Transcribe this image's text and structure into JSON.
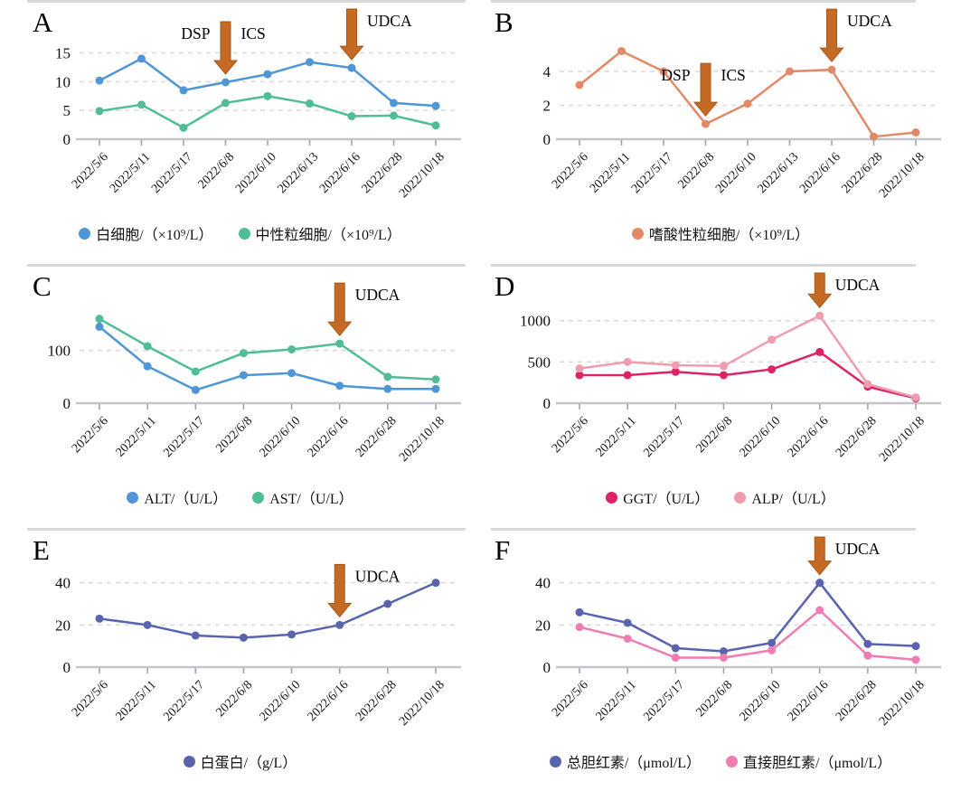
{
  "figure_background": "#ffffff",
  "annotation_arrow_color": "#C56A24",
  "annotation_arrow_edge_color": "#A85616",
  "grid_color": "#d9d9d9",
  "axis_color": "#c2c6ca",
  "chart_data": [
    {
      "panel": "A",
      "type": "line",
      "categories": [
        "2022/5/6",
        "2022/5/11",
        "2022/5/17",
        "2022/6/8",
        "2022/6/10",
        "2022/6/13",
        "2022/6/16",
        "2022/6/28",
        "2022/10/18"
      ],
      "series": [
        {
          "name": "白细胞/（×10⁹/L）",
          "color": "#4E96D5",
          "values": [
            10.2,
            14.0,
            8.5,
            9.9,
            11.3,
            13.4,
            12.4,
            6.3,
            5.8
          ]
        },
        {
          "name": "中性粒细胞/（×10⁹/L）",
          "color": "#50BD96",
          "values": [
            4.9,
            6.0,
            2.0,
            6.3,
            7.5,
            6.2,
            4.0,
            4.1,
            2.4
          ]
        }
      ],
      "y_ticks": [
        0,
        5,
        10,
        15
      ],
      "ylim": [
        0,
        16.5
      ],
      "xlabel": "",
      "ylabel": "",
      "grid": "dashed-horizontal",
      "legend_position": "bottom",
      "annotations": [
        {
          "left_label": "DSP",
          "right_label": "ICS",
          "category_index": 3
        },
        {
          "left_label": "",
          "right_label": "UDCA",
          "category_index": 6
        }
      ]
    },
    {
      "panel": "B",
      "type": "line",
      "categories": [
        "2022/5/6",
        "2022/5/11",
        "2022/5/17",
        "2022/6/8",
        "2022/6/10",
        "2022/6/13",
        "2022/6/16",
        "2022/6/28",
        "2022/10/18"
      ],
      "series": [
        {
          "name": "嗜酸性粒细胞/（×10⁹/L）",
          "color": "#E08A68",
          "values": [
            3.2,
            5.2,
            4.0,
            0.9,
            2.1,
            4.0,
            4.1,
            0.15,
            0.4
          ]
        }
      ],
      "y_ticks": [
        0,
        2,
        4
      ],
      "ylim": [
        0,
        5.6
      ],
      "xlabel": "",
      "ylabel": "",
      "grid": "dashed-horizontal",
      "legend_position": "bottom",
      "annotations": [
        {
          "left_label": "DSP",
          "right_label": "ICS",
          "category_index": 3
        },
        {
          "left_label": "",
          "right_label": "UDCA",
          "category_index": 6
        }
      ]
    },
    {
      "panel": "C",
      "type": "line",
      "categories": [
        "2022/5/6",
        "2022/5/11",
        "2022/5/17",
        "2022/6/8",
        "2022/6/10",
        "2022/6/16",
        "2022/6/28",
        "2022/10/18"
      ],
      "series": [
        {
          "name": "ALT/（U/L）",
          "color": "#4E96D5",
          "values": [
            145,
            70,
            25,
            53,
            57,
            33,
            27,
            27
          ]
        },
        {
          "name": "AST/（U/L）",
          "color": "#50BD96",
          "values": [
            160,
            108,
            60,
            95,
            102,
            113,
            50,
            45
          ]
        }
      ],
      "y_ticks": [
        0,
        100
      ],
      "ylim": [
        0,
        180
      ],
      "xlabel": "",
      "ylabel": "",
      "grid": "dashed-horizontal",
      "legend_position": "bottom",
      "annotations": [
        {
          "left_label": "",
          "right_label": "UDCA",
          "category_index": 5
        }
      ]
    },
    {
      "panel": "D",
      "type": "line",
      "categories": [
        "2022/5/6",
        "2022/5/11",
        "2022/5/17",
        "2022/6/8",
        "2022/6/10",
        "2022/6/16",
        "2022/6/28",
        "2022/10/18"
      ],
      "series": [
        {
          "name": "GGT/（U/L）",
          "color": "#DE2268",
          "values": [
            340,
            340,
            380,
            340,
            410,
            620,
            200,
            60
          ]
        },
        {
          "name": "ALP/（U/L）",
          "color": "#F09CAF",
          "values": [
            420,
            500,
            460,
            450,
            770,
            1060,
            230,
            70
          ]
        }
      ],
      "y_ticks": [
        0,
        500,
        1000
      ],
      "ylim": [
        0,
        1150
      ],
      "xlabel": "",
      "ylabel": "",
      "grid": "dashed-horizontal",
      "legend_position": "bottom",
      "annotations": [
        {
          "left_label": "",
          "right_label": "UDCA",
          "category_index": 5
        }
      ]
    },
    {
      "panel": "E",
      "type": "line",
      "categories": [
        "2022/5/6",
        "2022/5/11",
        "2022/5/17",
        "2022/6/8",
        "2022/6/10",
        "2022/6/16",
        "2022/6/28",
        "2022/10/18"
      ],
      "series": [
        {
          "name": "白蛋白/（g/L）",
          "color": "#5A64AE",
          "values": [
            23,
            20,
            15,
            14,
            15.5,
            20,
            30,
            40
          ]
        }
      ],
      "y_ticks": [
        0,
        20,
        40
      ],
      "ylim": [
        0,
        45
      ],
      "xlabel": "",
      "ylabel": "",
      "grid": "dashed-horizontal",
      "legend_position": "bottom",
      "annotations": [
        {
          "left_label": "",
          "right_label": "UDCA",
          "category_index": 5
        }
      ]
    },
    {
      "panel": "F",
      "type": "line",
      "categories": [
        "2022/5/6",
        "2022/5/11",
        "2022/5/17",
        "2022/6/8",
        "2022/6/10",
        "2022/6/16",
        "2022/6/28",
        "2022/10/18"
      ],
      "series": [
        {
          "name": "总胆红素/（μmol/L）",
          "color": "#5A64AE",
          "values": [
            26,
            21,
            9,
            7.5,
            11.5,
            40,
            11,
            10
          ]
        },
        {
          "name": "直接胆红素/（μmol/L）",
          "color": "#EF7DB4",
          "values": [
            19,
            13.5,
            4.5,
            4.5,
            8,
            27,
            5.5,
            3.5
          ]
        }
      ],
      "y_ticks": [
        0,
        20,
        40
      ],
      "ylim": [
        0,
        45
      ],
      "xlabel": "",
      "ylabel": "",
      "grid": "dashed-horizontal",
      "legend_position": "bottom",
      "annotations": [
        {
          "left_label": "",
          "right_label": "UDCA",
          "category_index": 5
        }
      ]
    }
  ]
}
